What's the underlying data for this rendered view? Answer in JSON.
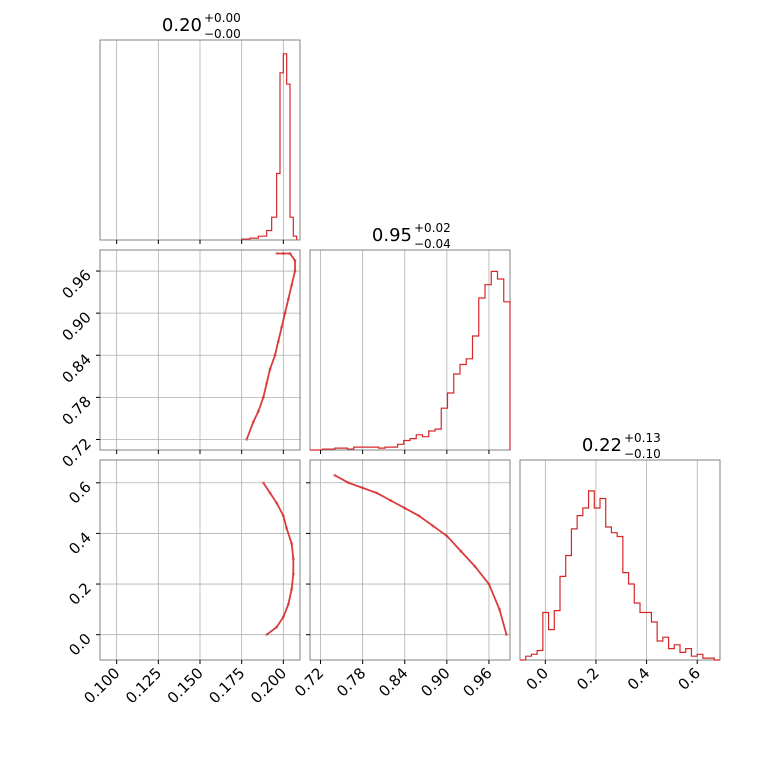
{
  "chart_data": [
    {
      "type": "histogram",
      "panel": "marginal-p1",
      "title_value": "0.20",
      "title_plus": "+0.00",
      "title_minus": "−0.00",
      "xlim": [
        0.09,
        0.21
      ],
      "ticks": [
        0.1,
        0.125,
        0.15,
        0.175,
        0.2
      ],
      "bins": [
        0.175,
        0.18,
        0.185,
        0.19,
        0.193,
        0.196,
        0.198,
        0.2,
        0.202,
        0.204,
        0.206,
        0.208
      ],
      "counts": [
        0.005,
        0.01,
        0.02,
        0.05,
        0.12,
        0.35,
        0.88,
        0.98,
        0.82,
        0.12,
        0.02
      ]
    },
    {
      "type": "histogram",
      "panel": "marginal-p2",
      "title_value": "0.95",
      "title_plus": "+0.02",
      "title_minus": "−0.04",
      "xlim": [
        0.705,
        0.99
      ],
      "ticks": [
        0.72,
        0.78,
        0.84,
        0.9,
        0.96
      ],
      "counts": [
        0.0,
        0.0,
        0.005,
        0.005,
        0.01,
        0.01,
        0.005,
        0.015,
        0.015,
        0.015,
        0.015,
        0.01,
        0.015,
        0.015,
        0.03,
        0.05,
        0.06,
        0.08,
        0.07,
        0.1,
        0.11,
        0.22,
        0.3,
        0.4,
        0.45,
        0.48,
        0.6,
        0.8,
        0.87,
        0.94,
        0.9,
        0.78
      ]
    },
    {
      "type": "histogram",
      "panel": "marginal-p3",
      "title_value": "0.22",
      "title_plus": "+0.13",
      "title_minus": "−0.10",
      "xlim": [
        -0.1,
        0.69
      ],
      "ticks": [
        0.0,
        0.2,
        0.4,
        0.6
      ],
      "counts": [
        0.0,
        0.02,
        0.03,
        0.05,
        0.25,
        0.16,
        0.26,
        0.44,
        0.55,
        0.69,
        0.76,
        0.8,
        0.89,
        0.8,
        0.85,
        0.7,
        0.67,
        0.65,
        0.46,
        0.4,
        0.3,
        0.25,
        0.25,
        0.2,
        0.1,
        0.12,
        0.06,
        0.08,
        0.04,
        0.06,
        0.02,
        0.03,
        0.01,
        0.01,
        0.0
      ]
    },
    {
      "type": "scatter",
      "panel": "p1-vs-p2",
      "xlim": [
        0.09,
        0.21
      ],
      "ylim": [
        0.705,
        0.99
      ],
      "yticks": [
        0.72,
        0.78,
        0.84,
        0.9,
        0.96
      ],
      "points": [
        [
          0.196,
          0.985
        ],
        [
          0.2,
          0.985
        ],
        [
          0.204,
          0.985
        ],
        [
          0.207,
          0.975
        ],
        [
          0.207,
          0.96
        ],
        [
          0.205,
          0.94
        ],
        [
          0.203,
          0.92
        ],
        [
          0.201,
          0.9
        ],
        [
          0.199,
          0.88
        ],
        [
          0.197,
          0.86
        ],
        [
          0.195,
          0.84
        ],
        [
          0.192,
          0.82
        ],
        [
          0.19,
          0.8
        ],
        [
          0.188,
          0.78
        ],
        [
          0.185,
          0.76
        ],
        [
          0.182,
          0.745
        ],
        [
          0.178,
          0.72
        ]
      ]
    },
    {
      "type": "scatter",
      "panel": "p1-vs-p3",
      "xlim": [
        0.09,
        0.21
      ],
      "ylim": [
        -0.1,
        0.69
      ],
      "yticks": [
        0.0,
        0.2,
        0.4,
        0.6
      ],
      "points": [
        [
          0.188,
          0.6
        ],
        [
          0.192,
          0.56
        ],
        [
          0.196,
          0.52
        ],
        [
          0.2,
          0.47
        ],
        [
          0.202,
          0.42
        ],
        [
          0.205,
          0.36
        ],
        [
          0.206,
          0.3
        ],
        [
          0.206,
          0.24
        ],
        [
          0.205,
          0.18
        ],
        [
          0.203,
          0.12
        ],
        [
          0.2,
          0.07
        ],
        [
          0.196,
          0.03
        ],
        [
          0.19,
          0.0
        ]
      ]
    },
    {
      "type": "scatter",
      "panel": "p2-vs-p3",
      "xlim": [
        0.705,
        0.99
      ],
      "ylim": [
        -0.1,
        0.69
      ],
      "points": [
        [
          0.74,
          0.63
        ],
        [
          0.76,
          0.6
        ],
        [
          0.78,
          0.58
        ],
        [
          0.8,
          0.56
        ],
        [
          0.82,
          0.53
        ],
        [
          0.84,
          0.5
        ],
        [
          0.86,
          0.47
        ],
        [
          0.88,
          0.43
        ],
        [
          0.9,
          0.39
        ],
        [
          0.92,
          0.33
        ],
        [
          0.94,
          0.27
        ],
        [
          0.96,
          0.2
        ],
        [
          0.975,
          0.1
        ],
        [
          0.985,
          0.0
        ]
      ]
    }
  ],
  "colors": {
    "series": "#d62728",
    "grid": "#b0b0b0",
    "frame": "#808080"
  },
  "tick_labels": {
    "p1": [
      "0.100",
      "0.125",
      "0.150",
      "0.175",
      "0.200"
    ],
    "p2": [
      "0.72",
      "0.78",
      "0.84",
      "0.90",
      "0.96"
    ],
    "p3": [
      "0.0",
      "0.2",
      "0.4",
      "0.6"
    ]
  }
}
